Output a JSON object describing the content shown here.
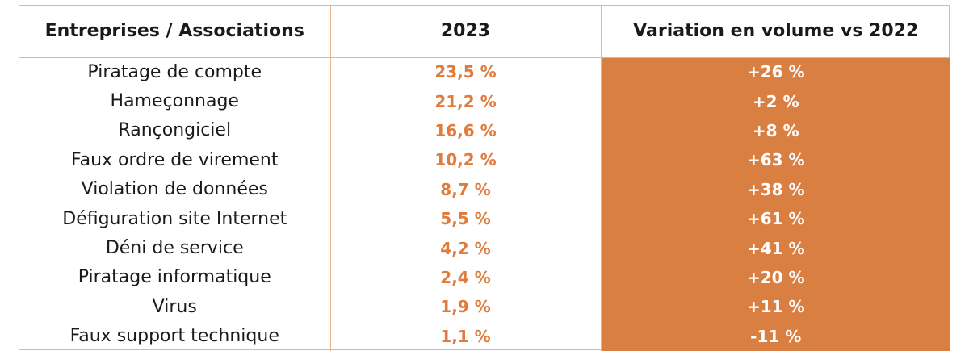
{
  "chart_data": {
    "type": "table",
    "headers": [
      "Entreprises / Associations",
      "2023",
      "Variation en volume vs 2022"
    ],
    "rows": [
      {
        "category": "Piratage de compte",
        "share_2023": "23,5 %",
        "variation": "+26 %"
      },
      {
        "category": "Hameçonnage",
        "share_2023": "21,2 %",
        "variation": "+2 %"
      },
      {
        "category": "Rançongiciel",
        "share_2023": "16,6 %",
        "variation": "+8 %"
      },
      {
        "category": "Faux ordre de virement",
        "share_2023": "10,2 %",
        "variation": "+63 %"
      },
      {
        "category": "Violation de données",
        "share_2023": "8,7 %",
        "variation": "+38 %"
      },
      {
        "category": "Défiguration site Internet",
        "share_2023": "5,5 %",
        "variation": "+61 %"
      },
      {
        "category": "Déni de service",
        "share_2023": "4,2 %",
        "variation": "+41 %"
      },
      {
        "category": "Piratage informatique",
        "share_2023": "2,4 %",
        "variation": "+20 %"
      },
      {
        "category": "Virus",
        "share_2023": "1,9 %",
        "variation": "+11 %"
      },
      {
        "category": "Faux support technique",
        "share_2023": "1,1 %",
        "variation": "-11 %"
      }
    ],
    "colors": {
      "value_text": "#e07b3c",
      "variation_fill": "#d97f42",
      "border": "#e7b48c"
    }
  }
}
